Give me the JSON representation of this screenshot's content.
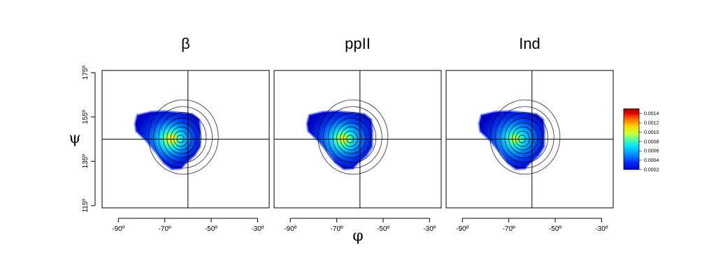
{
  "chart_data": {
    "type": "heatmap",
    "panels": [
      {
        "title": "β",
        "peak": {
          "x": -62,
          "y": 145
        },
        "peak_density": 0.00125
      },
      {
        "title": "ppII",
        "peak": {
          "x": -63,
          "y": 145
        },
        "peak_density": 0.0012
      },
      {
        "title": "Ind",
        "peak": {
          "x": -63,
          "y": 145
        },
        "peak_density": 0.0011
      }
    ],
    "xlabel": "φ",
    "ylabel": "ψ",
    "xlim": [
      -97,
      -25
    ],
    "ylim": [
      114,
      176
    ],
    "xticks": [
      -90,
      -70,
      -50,
      -30
    ],
    "xtick_labels": [
      "-90º",
      "-70º",
      "-50º",
      "-30º"
    ],
    "yticks": [
      115,
      135,
      155,
      175
    ],
    "ytick_labels": [
      "115º",
      "135º",
      "155º",
      "175º"
    ],
    "crosshair": {
      "x": -60,
      "y": 145
    },
    "colorbar": {
      "ticks": [
        "0.0002",
        "0.0004",
        "0.0006",
        "0.0008",
        "0.0010",
        "0.0012",
        "0.0014"
      ],
      "range": [
        0.0002,
        0.0015
      ],
      "colors": [
        "#0000cc",
        "#0030ff",
        "#0090ff",
        "#00e0ff",
        "#60ffa0",
        "#d0ff30",
        "#ffd000",
        "#ff6000",
        "#e00000",
        "#a00000"
      ]
    },
    "grid": false,
    "legend": "right"
  }
}
